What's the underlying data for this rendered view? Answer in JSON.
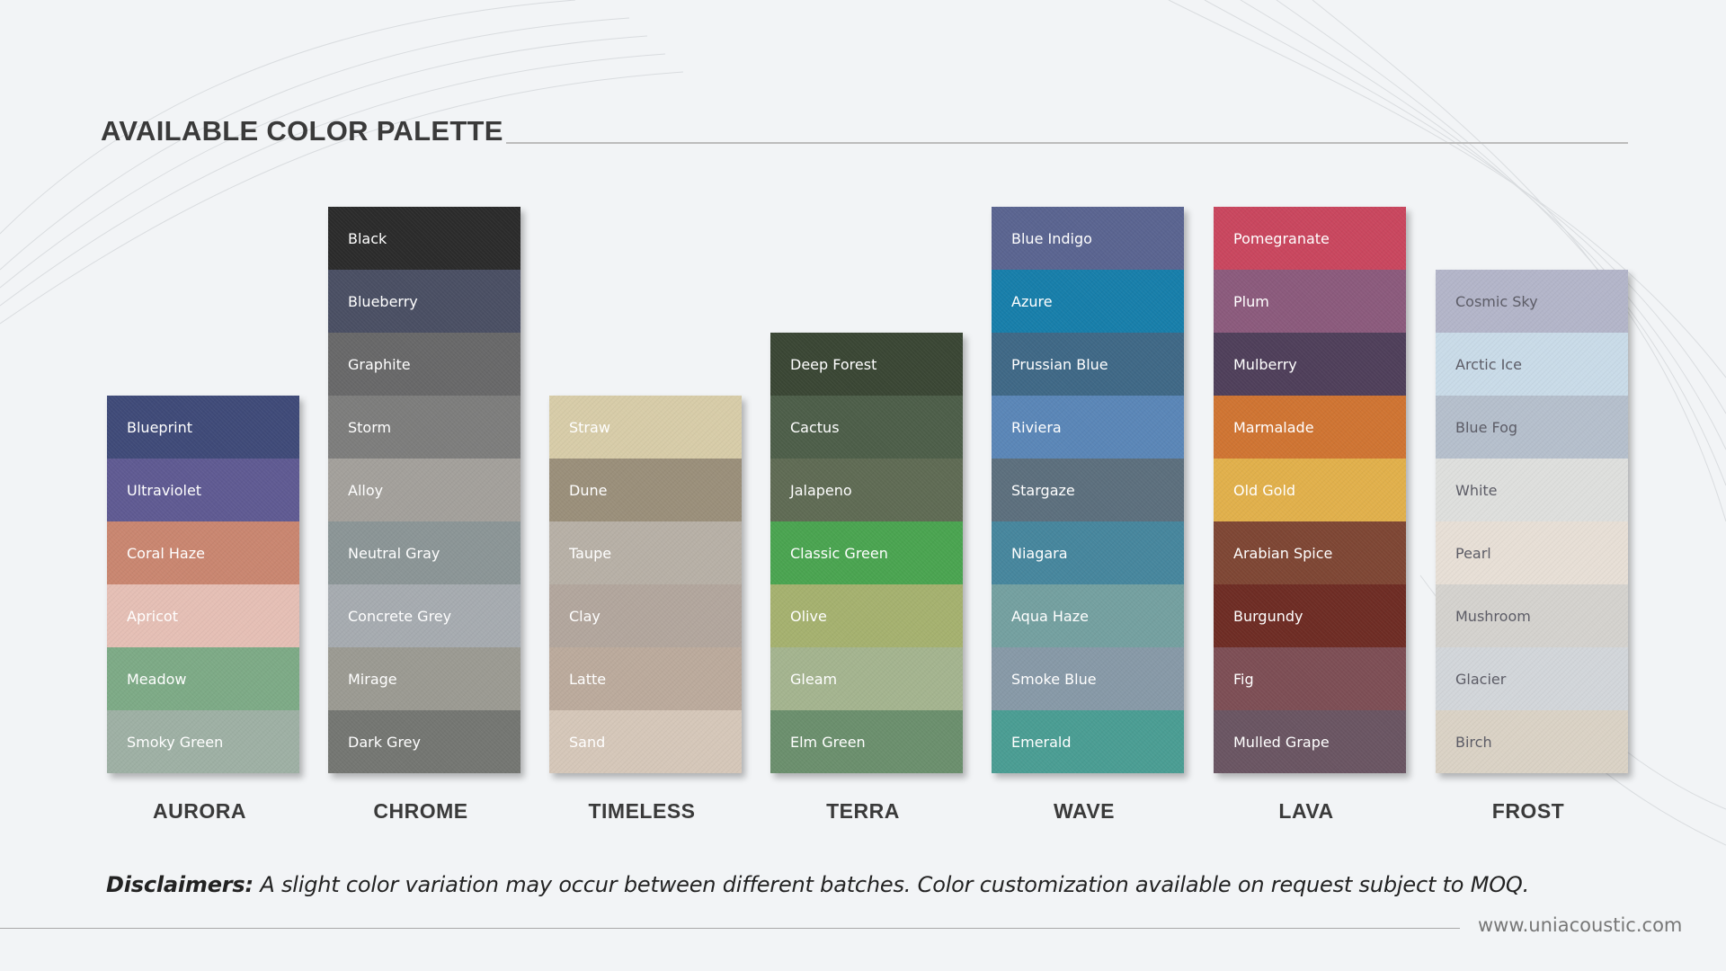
{
  "title": "AVAILABLE COLOR PALETTE",
  "collections": [
    {
      "name": "AURORA",
      "swatches": [
        {
          "label": "Blueprint",
          "color": "#3f4a78",
          "text": "#ffffff"
        },
        {
          "label": "Ultraviolet",
          "color": "#5f5a92",
          "text": "#ffffff"
        },
        {
          "label": "Coral Haze",
          "color": "#c98670",
          "text": "#ffffff"
        },
        {
          "label": "Apricot",
          "color": "#e5bfb5",
          "text": "#ffffff"
        },
        {
          "label": "Meadow",
          "color": "#7daa86",
          "text": "#ffffff"
        },
        {
          "label": "Smoky Green",
          "color": "#9eb0a4",
          "text": "#ffffff"
        }
      ]
    },
    {
      "name": "CHROME",
      "swatches": [
        {
          "label": "Black",
          "color": "#2b2b2b",
          "text": "#ffffff"
        },
        {
          "label": "Blueberry",
          "color": "#4a4f63",
          "text": "#ffffff"
        },
        {
          "label": "Graphite",
          "color": "#686869",
          "text": "#ffffff"
        },
        {
          "label": "Storm",
          "color": "#7d7d7c",
          "text": "#ffffff"
        },
        {
          "label": "Alloy",
          "color": "#a3a09b",
          "text": "#ffffff"
        },
        {
          "label": "Neutral Gray",
          "color": "#8b9596",
          "text": "#ffffff"
        },
        {
          "label": "Concrete Grey",
          "color": "#a6abb0",
          "text": "#ffffff"
        },
        {
          "label": "Mirage",
          "color": "#9b9a92",
          "text": "#ffffff"
        },
        {
          "label": "Dark Grey",
          "color": "#747672",
          "text": "#ffffff"
        }
      ]
    },
    {
      "name": "TIMELESS",
      "swatches": [
        {
          "label": "Straw",
          "color": "#d7cca8",
          "text": "#ffffff"
        },
        {
          "label": "Dune",
          "color": "#9a8f7a",
          "text": "#ffffff"
        },
        {
          "label": "Taupe",
          "color": "#b7b0a6",
          "text": "#ffffff"
        },
        {
          "label": "Clay",
          "color": "#b2a69d",
          "text": "#ffffff"
        },
        {
          "label": "Latte",
          "color": "#bbaa9c",
          "text": "#ffffff"
        },
        {
          "label": "Sand",
          "color": "#d5c7b9",
          "text": "#ffffff"
        }
      ]
    },
    {
      "name": "TERRA",
      "swatches": [
        {
          "label": "Deep Forest",
          "color": "#3a4634",
          "text": "#ffffff"
        },
        {
          "label": "Cactus",
          "color": "#4d5e49",
          "text": "#ffffff"
        },
        {
          "label": "Jalapeno",
          "color": "#5f6b54",
          "text": "#ffffff"
        },
        {
          "label": "Classic Green",
          "color": "#4aa450",
          "text": "#ffffff"
        },
        {
          "label": "Olive",
          "color": "#a5b16f",
          "text": "#ffffff"
        },
        {
          "label": "Gleam",
          "color": "#a4b48f",
          "text": "#ffffff"
        },
        {
          "label": "Elm Green",
          "color": "#6b8f6d",
          "text": "#ffffff"
        }
      ]
    },
    {
      "name": "WAVE",
      "swatches": [
        {
          "label": "Blue Indigo",
          "color": "#5a6490",
          "text": "#ffffff"
        },
        {
          "label": "Azure",
          "color": "#177eaa",
          "text": "#ffffff"
        },
        {
          "label": "Prussian Blue",
          "color": "#3f6886",
          "text": "#ffffff"
        },
        {
          "label": "Riviera",
          "color": "#5a86b7",
          "text": "#ffffff"
        },
        {
          "label": "Stargaze",
          "color": "#5c6f7d",
          "text": "#ffffff"
        },
        {
          "label": "Niagara",
          "color": "#46869d",
          "text": "#ffffff"
        },
        {
          "label": "Aqua Haze",
          "color": "#74a0a0",
          "text": "#ffffff"
        },
        {
          "label": "Smoke Blue",
          "color": "#8799a7",
          "text": "#ffffff"
        },
        {
          "label": "Emerald",
          "color": "#4a9d93",
          "text": "#ffffff"
        }
      ]
    },
    {
      "name": "LAVA",
      "swatches": [
        {
          "label": "Pomegranate",
          "color": "#c9465e",
          "text": "#ffffff"
        },
        {
          "label": "Plum",
          "color": "#8b5a7c",
          "text": "#ffffff"
        },
        {
          "label": "Mulberry",
          "color": "#4f3f5a",
          "text": "#ffffff"
        },
        {
          "label": "Marmalade",
          "color": "#cf7432",
          "text": "#ffffff"
        },
        {
          "label": "Old Gold",
          "color": "#e1b04b",
          "text": "#ffffff"
        },
        {
          "label": "Arabian Spice",
          "color": "#7e4634",
          "text": "#ffffff"
        },
        {
          "label": "Burgundy",
          "color": "#6e2c24",
          "text": "#ffffff"
        },
        {
          "label": "Fig",
          "color": "#7d4e55",
          "text": "#ffffff"
        },
        {
          "label": "Mulled Grape",
          "color": "#6a5562",
          "text": "#ffffff"
        }
      ]
    },
    {
      "name": "FROST",
      "swatches": [
        {
          "label": "Cosmic Sky",
          "color": "#b3b5c9",
          "text": "#5c5c66"
        },
        {
          "label": "Arctic Ice",
          "color": "#c9dbe8",
          "text": "#5c5c66"
        },
        {
          "label": "Blue Fog",
          "color": "#b5bfcc",
          "text": "#5c5c66"
        },
        {
          "label": "White",
          "color": "#dedfdd",
          "text": "#5c5c66"
        },
        {
          "label": "Pearl",
          "color": "#e7dfd6",
          "text": "#5c5c66"
        },
        {
          "label": "Mushroom",
          "color": "#d4d2ce",
          "text": "#5c5c66"
        },
        {
          "label": "Glacier",
          "color": "#d2d6da",
          "text": "#5c5c66"
        },
        {
          "label": "Birch",
          "color": "#dad2c5",
          "text": "#5c5c66"
        }
      ]
    }
  ],
  "disclaimer": {
    "label": "Disclaimers:",
    "text": " A slight color variation may occur between different batches. Color customization available on request subject to MOQ."
  },
  "footer": {
    "url": "www.uniacoustic.com"
  }
}
